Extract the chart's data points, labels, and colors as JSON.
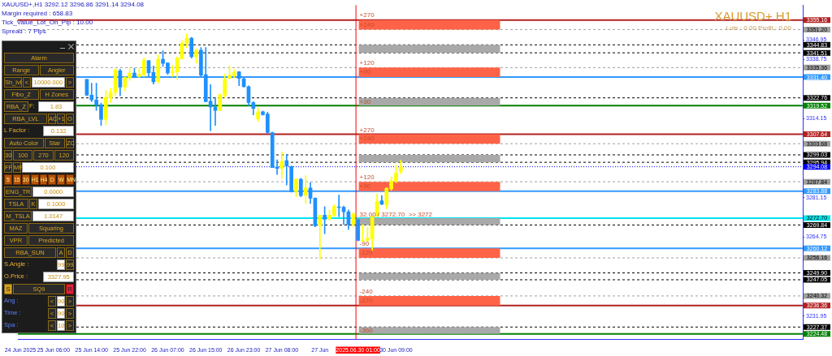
{
  "chart_data": {
    "type": "candlestick",
    "title": "XAUUSD+ H1",
    "subtitle": "Lots : 0.00 Profit : 0.00",
    "categories": [
      "24 Jun 2025",
      null,
      null,
      null,
      null,
      null,
      null,
      "25 Jun 06:00",
      null,
      null,
      null,
      null,
      null,
      null,
      null,
      "25 Jun 14:00",
      null,
      null,
      null,
      null,
      null,
      null,
      null,
      "25 Jun 22:00",
      null,
      null,
      null,
      null,
      null,
      null,
      null,
      "26 Jun 07:00",
      null,
      null,
      null,
      null,
      null,
      null,
      null,
      "26 Jun 15:00",
      null,
      null,
      null,
      null,
      null,
      null,
      null,
      "26 Jun 23:00",
      null,
      null,
      null,
      null,
      null,
      null,
      null,
      "27 Jun 08:00",
      null,
      null,
      null,
      null,
      null,
      null,
      null,
      "27 Jun",
      null,
      null,
      null,
      null,
      null,
      null,
      null,
      "2025.06.30 01:00",
      null,
      null,
      null,
      null,
      null,
      null,
      null,
      "30 Jun 09:00",
      null,
      null,
      null,
      null,
      null,
      null,
      null,
      null,
      null,
      null,
      null,
      null,
      null,
      null,
      null,
      null,
      null,
      null,
      null,
      null,
      null,
      null,
      null,
      null,
      null,
      null,
      null,
      null,
      null,
      null,
      null,
      null,
      null,
      null,
      null,
      null,
      null,
      null,
      null,
      null,
      null,
      null,
      null,
      null,
      null,
      null,
      null,
      null,
      null,
      null,
      null,
      null,
      null,
      null,
      null,
      null,
      null,
      null,
      null,
      null,
      null,
      null,
      null,
      null,
      null,
      null,
      null,
      null,
      null,
      null,
      null,
      null,
      null,
      null,
      null,
      null,
      null,
      null,
      null,
      null,
      null,
      null,
      null,
      null,
      null
    ],
    "ohlc": [
      null,
      null,
      null,
      null,
      null,
      null,
      null,
      null,
      null,
      null,
      null,
      null,
      null,
      null,
      [
        3330.5,
        3330.5,
        3323.7,
        3323.9
      ],
      [
        3323.9,
        3328.9,
        3321.2,
        3321.9
      ],
      [
        3321.9,
        3328.9,
        3317.5,
        3319.7
      ],
      [
        3319.9,
        3320.6,
        3311.3,
        3313.8
      ],
      [
        3313.8,
        3325.9,
        3311.6,
        3323.0
      ],
      [
        3322.8,
        3326.7,
        3320.8,
        3325.0
      ],
      [
        3325.0,
        3334.9,
        3323.7,
        3334.4
      ],
      [
        3334.0,
        3334.7,
        3323.7,
        3327.2
      ],
      [
        3327.2,
        3331.6,
        3325.6,
        3331.3
      ],
      [
        3331.1,
        3335.3,
        3330.0,
        3333.1
      ],
      [
        3333.1,
        3335.1,
        3331.1,
        3331.5
      ],
      [
        3331.6,
        3334.9,
        3331.4,
        3332.7
      ],
      [
        3332.4,
        3339.5,
        3331.6,
        3338.4
      ],
      [
        3338.2,
        3338.4,
        3331.6,
        3333.2
      ],
      [
        3333.3,
        3336.0,
        3328.5,
        3329.4
      ],
      [
        3329.6,
        3340.6,
        3328.9,
        3338.8
      ],
      [
        3338.8,
        3342.4,
        3335.8,
        3337.1
      ],
      [
        3337.3,
        3337.3,
        3332.5,
        3333.1
      ],
      [
        3333.3,
        3336.2,
        3331.6,
        3333.6
      ],
      [
        3333.6,
        3339.9,
        3330.5,
        3339.3
      ],
      [
        3339.0,
        3346.5,
        3338.8,
        3345.4
      ],
      [
        3345.5,
        3349.4,
        3343.7,
        3347.6
      ],
      [
        3347.6,
        3347.9,
        3339.3,
        3339.9
      ],
      [
        3339.9,
        3343.2,
        3337.1,
        3342.4
      ],
      [
        3342.6,
        3343.7,
        3331.6,
        3332.2
      ],
      [
        3332.4,
        3343.7,
        3321.2,
        3321.2
      ],
      [
        3321.4,
        3328.3,
        3309.1,
        3319.0
      ],
      [
        3319.0,
        3323.0,
        3311.3,
        3317.5
      ],
      [
        3317.5,
        3324.5,
        3317.5,
        3324.1
      ],
      [
        3323.9,
        3332.7,
        3322.8,
        3330.5
      ],
      [
        3330.9,
        3336.0,
        3330.5,
        3332.2
      ],
      [
        3332.0,
        3334.4,
        3331.1,
        3333.3
      ],
      [
        3333.6,
        3333.8,
        3327.8,
        3330.9
      ],
      [
        3330.7,
        3331.1,
        3327.2,
        3327.4
      ],
      [
        3327.4,
        3327.8,
        3319.5,
        3320.8
      ],
      [
        3320.8,
        3321.2,
        3315.7,
        3318.4
      ],
      [
        3314.0,
        3318.6,
        3312.9,
        3317.0
      ],
      [
        3317.0,
        3317.3,
        3315.5,
        3315.8
      ],
      [
        3316.0,
        3316.8,
        3308.0,
        3308.3
      ],
      [
        3308.3,
        3308.5,
        3293.7,
        3293.7
      ],
      [
        3293.9,
        3297.0,
        3290.9,
        3293.4
      ],
      [
        3293.4,
        3300.3,
        3289.3,
        3296.4
      ],
      [
        3296.6,
        3299.2,
        3286.5,
        3294.4
      ],
      [
        3294.2,
        3294.4,
        3283.5,
        3283.8
      ],
      [
        3283.8,
        3289.3,
        3281.6,
        3288.9
      ],
      [
        3288.9,
        3289.3,
        3281.6,
        3282.1
      ],
      [
        3282.3,
        3290.4,
        3278.8,
        3285.2
      ],
      [
        3285.2,
        3287.4,
        3278.8,
        3281.0
      ],
      [
        3281.0,
        3281.2,
        3269.1,
        3269.5
      ],
      [
        3269.8,
        3273.9,
        3255.7,
        3273.9
      ],
      [
        3273.9,
        3277.5,
        3266.2,
        3272.2
      ],
      [
        3272.4,
        3276.1,
        3271.7,
        3273.9
      ],
      [
        3273.9,
        3278.3,
        3273.3,
        3277.5
      ],
      [
        3277.4,
        3282.3,
        3273.3,
        3277.1
      ],
      [
        3277.2,
        3277.7,
        3270.0,
        3275.3
      ],
      [
        3275.3,
        3276.1,
        3268.0,
        3270.0
      ],
      [
        3270.0,
        3275.0,
        3268.9,
        3274.4
      ],
      [
        3272.2,
        3272.2,
        3263.2,
        3263.4
      ],
      [
        3263.2,
        3270.0,
        3262.9,
        3263.4
      ],
      [
        3263.4,
        3268.9,
        3262.9,
        3264.2
      ],
      [
        3264.0,
        3273.5,
        3259.2,
        3273.3
      ],
      [
        3273.5,
        3282.7,
        3273.3,
        3279.7
      ],
      [
        3279.9,
        3282.1,
        3278.3,
        3278.5
      ],
      [
        3278.3,
        3285.4,
        3276.6,
        3285.1
      ],
      [
        3284.9,
        3289.8,
        3284.3,
        3288.2
      ],
      [
        3288.2,
        3294.8,
        3287.4,
        3291.5
      ],
      [
        3292.12,
        3296.86,
        3291.14,
        3294.08
      ],
      null,
      null,
      null,
      null,
      null,
      null,
      null,
      null,
      null,
      null,
      null,
      null,
      null,
      null,
      null,
      null,
      null,
      null,
      null,
      null,
      null,
      null,
      null,
      null,
      null,
      null,
      null,
      null,
      null,
      null,
      null,
      null,
      null,
      null,
      null,
      null,
      null,
      null,
      null,
      null,
      null,
      null,
      null,
      null,
      null,
      null,
      null,
      null,
      null,
      null,
      null,
      null,
      null,
      null,
      null,
      null,
      null,
      null,
      null,
      null,
      null,
      null,
      null,
      null,
      null,
      null,
      null,
      null,
      null,
      null,
      null,
      null,
      null,
      null,
      null,
      null,
      null,
      null,
      null,
      null,
      null,
      null,
      null,
      null
    ],
    "colors": [
      null,
      null,
      null,
      null,
      null,
      null,
      null,
      null,
      null,
      null,
      null,
      null,
      null,
      null,
      "#1e90ff",
      "#1e90ff",
      "#1e90ff",
      "#1e90ff",
      "#ffff00",
      "#ffff00",
      "#ffff00",
      "#1e90ff",
      "#ffff00",
      "#ffff00",
      "#1e90ff",
      "#ffff00",
      "#ffff00",
      "#1e90ff",
      "#1e90ff",
      "#ffff00",
      "#1e90ff",
      "#1e90ff",
      "#ffff00",
      "#ffff00",
      "#ffff00",
      "#ffff00",
      "#1e90ff",
      "#ffff00",
      "#1e90ff",
      "#1e90ff",
      "#1e90ff",
      "#1e90ff",
      "#ffff00",
      "#ffff00",
      "#ffff00",
      "#ffff00",
      "#1e90ff",
      "#1e90ff",
      "#1e90ff",
      "#1e90ff",
      "#ffff00",
      "#1e90ff",
      "#1e90ff",
      "#1e90ff",
      "#1e90ff",
      "#ffff00",
      "#1e90ff",
      "#1e90ff",
      "#ffff00",
      "#1e90ff",
      "#ffff00",
      "#1e90ff",
      "#1e90ff",
      "#ffff00",
      "#1e90ff",
      "#ffff00",
      "#ffff00",
      "#1e90ff",
      "#1e90ff",
      "#1e90ff",
      "#ffff00",
      "#1e90ff",
      "#ffff00",
      "#ffff00",
      "#ffff00",
      "#ffff00",
      "#1e90ff",
      "#ffff00",
      "#ffff00",
      "#ffff00",
      "#ffff00",
      null,
      null,
      null,
      null,
      null,
      null,
      null,
      null,
      null,
      null,
      null,
      null,
      null,
      null,
      null,
      null,
      null,
      null,
      null,
      null,
      null,
      null,
      null,
      null,
      null,
      null,
      null,
      null,
      null,
      null,
      null,
      null,
      null,
      null,
      null,
      null,
      null,
      null,
      null,
      null,
      null,
      null,
      null,
      null,
      null,
      null,
      null,
      null,
      null,
      null,
      null,
      null,
      null,
      null,
      null,
      null,
      null,
      null,
      null,
      null,
      null,
      null,
      null,
      null,
      null,
      null,
      null,
      null,
      null,
      null,
      null,
      null,
      null,
      null,
      null,
      null,
      null,
      null,
      null,
      null,
      null,
      null,
      null,
      null
    ],
    "ylim": [
      3222.2,
      3361.4
    ],
    "yticks": [
      3231.95,
      3264.75,
      3281.15,
      3314.15,
      3338.75,
      3346.95
    ],
    "ref_lines": [
      {
        "axis": "y",
        "value": 3355.16,
        "label": "3355.16",
        "color": "#b22222",
        "line_style": "solid"
      },
      {
        "axis": "y",
        "value": 3351.2,
        "label": "3351.20",
        "color": "#a0a0a0",
        "line_style": "dashed"
      },
      {
        "axis": "y",
        "value": 3344.83,
        "label": "3344.83",
        "color": "#000000",
        "line_style": "dashed"
      },
      {
        "axis": "y",
        "value": 3341.51,
        "label": "3341.51",
        "color": "#000000",
        "line_style": "dashed"
      },
      {
        "axis": "y",
        "value": 3335.36,
        "label": "3335.36",
        "color": "#a0a0a0",
        "line_style": "dashed"
      },
      {
        "axis": "y",
        "value": 3331.4,
        "label": "3331.40",
        "color": "#3399ff",
        "line_style": "solid"
      },
      {
        "axis": "y",
        "value": 3322.76,
        "label": "3322.76",
        "color": "#000000",
        "line_style": "dashed"
      },
      {
        "axis": "y",
        "value": 3319.52,
        "label": "3319.52",
        "color": "#008000",
        "line_style": "solid"
      },
      {
        "axis": "y",
        "value": 3307.64,
        "label": "3307.64",
        "color": "#b22222",
        "line_style": "solid"
      },
      {
        "axis": "y",
        "value": 3303.68,
        "label": "3303.68",
        "color": "#a0a0a0",
        "line_style": "dashed"
      },
      {
        "axis": "y",
        "value": 3299.03,
        "label": "3299.03",
        "color": "#000000",
        "line_style": "dashed"
      },
      {
        "axis": "y",
        "value": 3295.94,
        "label": "3295.94",
        "color": "#000000",
        "line_style": "dashed"
      },
      {
        "axis": "y",
        "value": 3294.08,
        "label": "3294.08",
        "color": "#0000ff",
        "line_style": "dotted"
      },
      {
        "axis": "y",
        "value": 3287.84,
        "label": "3287.84",
        "color": "#a0a0a0",
        "line_style": "dashed"
      },
      {
        "axis": "y",
        "value": 3283.88,
        "label": "3283.88",
        "color": "#3399ff",
        "line_style": "solid"
      },
      {
        "axis": "y",
        "value": 3272.7,
        "label": "3272.70",
        "color": "#00e5ee",
        "line_style": "solid"
      },
      {
        "axis": "y",
        "value": 3269.84,
        "label": "3269.84",
        "color": "#000000",
        "line_style": "dashed"
      },
      {
        "axis": "y",
        "value": 3260.12,
        "label": "3260.12",
        "color": "#3399ff",
        "line_style": "solid"
      },
      {
        "axis": "y",
        "value": 3256.16,
        "label": "3256.16",
        "color": "#a0a0a0",
        "line_style": "dashed"
      },
      {
        "axis": "y",
        "value": 3249.9,
        "label": "3249.90",
        "color": "#000000",
        "line_style": "dashed"
      },
      {
        "axis": "y",
        "value": 3247.05,
        "label": "3247.05",
        "color": "#000000",
        "line_style": "dashed"
      },
      {
        "axis": "y",
        "value": 3240.32,
        "label": "3240.32",
        "color": "#a0a0a0",
        "line_style": "dashed"
      },
      {
        "axis": "y",
        "value": 3236.36,
        "label": "3236.36",
        "color": "#b22222",
        "line_style": "solid"
      },
      {
        "axis": "y",
        "value": 3227.37,
        "label": "3227.37",
        "color": "#000000",
        "line_style": "dashed"
      },
      {
        "axis": "y",
        "value": 3224.48,
        "label": "3224.48",
        "color": "#008000",
        "line_style": "solid"
      },
      {
        "axis": "x",
        "value": "2025.06.30 01:00",
        "color": "#ff0000",
        "line_style": "solid"
      }
    ],
    "bands": [
      {
        "axis": "y",
        "from": 3351.2,
        "to": 3355.16,
        "color": "#ff6347"
      },
      {
        "axis": "y",
        "from": 3341.51,
        "to": 3344.83,
        "color": "#a9a9a9"
      },
      {
        "axis": "y",
        "from": 3331.4,
        "to": 3335.36,
        "color": "#ff6347"
      },
      {
        "axis": "y",
        "from": 3319.52,
        "to": 3322.76,
        "color": "#a9a9a9"
      },
      {
        "axis": "y",
        "from": 3303.68,
        "to": 3307.64,
        "color": "#ff6347"
      },
      {
        "axis": "y",
        "from": 3295.94,
        "to": 3299.03,
        "color": "#a9a9a9"
      },
      {
        "axis": "y",
        "from": 3283.88,
        "to": 3287.84,
        "color": "#ff6347"
      },
      {
        "axis": "y",
        "from": 3269.84,
        "to": 3272.7,
        "color": "#a9a9a9"
      },
      {
        "axis": "y",
        "from": 3256.16,
        "to": 3260.12,
        "color": "#ff6347"
      },
      {
        "axis": "y",
        "from": 3247.05,
        "to": 3249.9,
        "color": "#a9a9a9"
      },
      {
        "axis": "y",
        "from": 3236.36,
        "to": 3240.32,
        "color": "#ff6347"
      },
      {
        "axis": "y",
        "from": 3224.48,
        "to": 3227.37,
        "color": "#a9a9a9"
      }
    ],
    "annotations": [
      "XAUUSD+,H1  3292.12 3296.86 3291.14 3294.08",
      "Margin required : 658.83",
      "Tick_Value_Lot_On_Pip : 10.00",
      "Spread : 7  Pips",
      "Alarm",
      "Range",
      "Angler",
      "Sh_lvl",
      "<",
      "10000.000",
      ">",
      "Fibo_Z",
      "H Zones",
      "RBA_Z",
      "F:",
      "1.83",
      "RBA_LVL",
      "AC",
      "+1",
      "O",
      "L Factor :",
      "0.132",
      "Auto Color",
      "Star",
      "ZC",
      "30",
      "100",
      "270",
      "120",
      "FF",
      "MF",
      "0.100",
      "5",
      "15",
      "30",
      "H1",
      "H4",
      "D",
      "W",
      "MN",
      "ENG_TR",
      "0.0000",
      "TSLA",
      "K",
      "0.1000",
      "M_TSLA",
      "1.0147",
      "MAZ",
      "Squaring",
      "VPR",
      "Predicted",
      "RBA_SUN",
      "A",
      "D",
      "S.Angle :",
      "99",
      "99",
      "O.Price :",
      "3327.95",
      "S",
      "SQ9",
      "R",
      "Ang :",
      "<",
      "90",
      ">",
      "Time :",
      "<",
      "90",
      ">",
      "Spa :",
      "<",
      "10",
      ">",
      {
        "text": "+270",
        "x": "2025.06.30 01:00",
        "y": 3357.0
      },
      {
        "text": "+240",
        "x": "2025.06.30 01:00",
        "y": 3353.2
      },
      {
        "text": "+120",
        "x": "2025.06.30 01:00",
        "y": 3337.4
      },
      {
        "text": "+90",
        "x": "2025.06.30 01:00",
        "y": 3333.4
      },
      {
        "text": "+30",
        "x": "2025.06.30 01:00",
        "y": 3321.1
      },
      {
        "text": "+270",
        "x": "2025.06.30 01:00",
        "y": 3309.3
      },
      {
        "text": "+240",
        "x": "2025.06.30 01:00",
        "y": 3305.7
      },
      {
        "text": "+120",
        "x": "2025.06.30 01:00",
        "y": 3289.5
      },
      {
        "text": "+90",
        "x": "2025.06.30 01:00",
        "y": 3285.9
      },
      {
        "text": "32.00 / 3272.70  >> 3272",
        "x": "2025.06.30 01:00",
        "y": 3274.1
      },
      {
        "text": "-90",
        "x": "2025.06.30 01:00",
        "y": 3262.0
      },
      {
        "text": "-120",
        "x": "2025.06.30 01:00",
        "y": 3258.1
      },
      {
        "text": "-240",
        "x": "2025.06.30 01:00",
        "y": 3241.9
      },
      {
        "text": "-270",
        "x": "2025.06.30 01:00",
        "y": 3238.3
      },
      {
        "text": "-360",
        "x": "2025.06.30 01:00",
        "y": 3225.9
      }
    ]
  }
}
